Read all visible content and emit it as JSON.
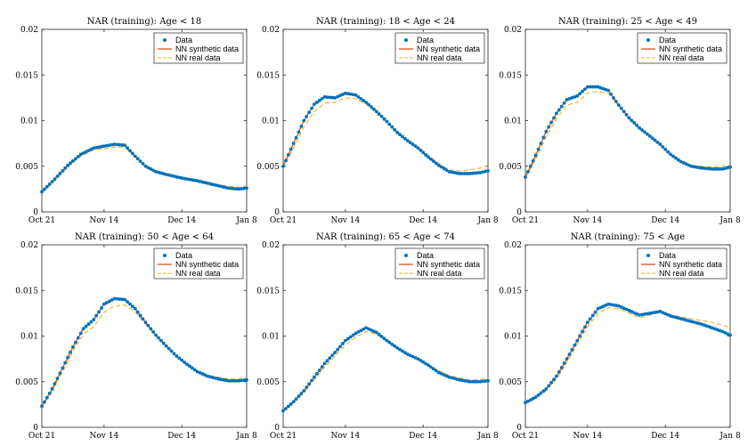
{
  "colors": {
    "data": "#0072BD",
    "synthetic": "#D95319",
    "real": "#EDB120"
  },
  "chart_data": [
    {
      "type": "line",
      "title": "NAR (training): Age < 18",
      "x_ticks": [
        "Oct 21",
        "Nov 14",
        "Dec 14",
        "Jan 8"
      ],
      "x_tick_days": [
        0,
        24,
        54,
        79
      ],
      "ylim": [
        0,
        0.02
      ],
      "y_ticks": [
        "0",
        "0.005",
        "0.01",
        "0.015",
        "0.02"
      ],
      "legend": [
        "Data",
        "NN synthetic data",
        "NN real data"
      ],
      "series": [
        {
          "name": "Data",
          "x": [
            0,
            5,
            10,
            15,
            20,
            24,
            28,
            32,
            36,
            40,
            44,
            48,
            54,
            60,
            66,
            72,
            76,
            79
          ],
          "values": [
            0.0022,
            0.0036,
            0.0051,
            0.0063,
            0.007,
            0.0072,
            0.0074,
            0.0073,
            0.0061,
            0.005,
            0.0044,
            0.0041,
            0.0037,
            0.0034,
            0.003,
            0.0026,
            0.0025,
            0.0026
          ]
        },
        {
          "name": "NN synthetic data",
          "x": [
            0,
            5,
            10,
            15,
            20,
            24,
            28,
            32,
            36,
            40,
            44,
            48,
            54,
            60,
            66,
            72,
            76,
            79
          ],
          "values": [
            0.0022,
            0.0036,
            0.0051,
            0.0063,
            0.007,
            0.0072,
            0.0074,
            0.0073,
            0.0061,
            0.005,
            0.0044,
            0.0041,
            0.0037,
            0.0034,
            0.003,
            0.0026,
            0.0025,
            0.0026
          ]
        },
        {
          "name": "NN real data",
          "x": [
            0,
            5,
            10,
            15,
            20,
            24,
            28,
            32,
            36,
            40,
            44,
            48,
            54,
            60,
            66,
            72,
            76,
            79
          ],
          "values": [
            0.0021,
            0.0034,
            0.0049,
            0.0061,
            0.0068,
            0.0069,
            0.0071,
            0.0071,
            0.006,
            0.005,
            0.0044,
            0.0042,
            0.0038,
            0.0035,
            0.0031,
            0.0028,
            0.0027,
            0.0028
          ]
        }
      ]
    },
    {
      "type": "line",
      "title": "NAR (training): 18 < Age < 24",
      "x_ticks": [
        "Oct 21",
        "Nov 14",
        "Dec 14",
        "Jan 8"
      ],
      "x_tick_days": [
        0,
        24,
        54,
        79
      ],
      "ylim": [
        0,
        0.02
      ],
      "y_ticks": [
        "0",
        "0.005",
        "0.01",
        "0.015",
        "0.02"
      ],
      "legend": [
        "Data",
        "NN synthetic data",
        "NN real data"
      ],
      "series": [
        {
          "name": "Data",
          "x": [
            0,
            4,
            8,
            12,
            16,
            20,
            24,
            28,
            32,
            36,
            40,
            44,
            48,
            52,
            56,
            60,
            64,
            68,
            72,
            76,
            79
          ],
          "values": [
            0.005,
            0.0075,
            0.01,
            0.0118,
            0.0126,
            0.0125,
            0.013,
            0.0128,
            0.012,
            0.011,
            0.0099,
            0.0087,
            0.0078,
            0.007,
            0.006,
            0.0051,
            0.0044,
            0.0042,
            0.0042,
            0.0043,
            0.0045
          ]
        },
        {
          "name": "NN synthetic data",
          "x": [
            0,
            4,
            8,
            12,
            16,
            20,
            24,
            28,
            32,
            36,
            40,
            44,
            48,
            52,
            56,
            60,
            64,
            68,
            72,
            76,
            79
          ],
          "values": [
            0.005,
            0.0075,
            0.01,
            0.0118,
            0.0126,
            0.0125,
            0.013,
            0.0128,
            0.012,
            0.011,
            0.0099,
            0.0087,
            0.0078,
            0.007,
            0.006,
            0.0051,
            0.0044,
            0.0042,
            0.0042,
            0.0043,
            0.0045
          ]
        },
        {
          "name": "NN real data",
          "x": [
            0,
            4,
            8,
            12,
            16,
            20,
            24,
            28,
            32,
            36,
            40,
            44,
            48,
            52,
            56,
            60,
            64,
            68,
            72,
            76,
            79
          ],
          "values": [
            0.0048,
            0.007,
            0.0093,
            0.011,
            0.0119,
            0.012,
            0.0125,
            0.0124,
            0.0118,
            0.0109,
            0.0099,
            0.0088,
            0.0079,
            0.0071,
            0.0062,
            0.0053,
            0.0046,
            0.0045,
            0.0046,
            0.0048,
            0.0051
          ]
        }
      ]
    },
    {
      "type": "line",
      "title": "NAR (training): 25 < Age < 49",
      "x_ticks": [
        "Oct 21",
        "Nov 14",
        "Dec 14",
        "Jan 8"
      ],
      "x_tick_days": [
        0,
        24,
        54,
        79
      ],
      "ylim": [
        0,
        0.02
      ],
      "y_ticks": [
        "0",
        "0.005",
        "0.01",
        "0.015",
        "0.02"
      ],
      "legend": [
        "Data",
        "NN synthetic data",
        "NN real data"
      ],
      "series": [
        {
          "name": "Data",
          "x": [
            0,
            4,
            8,
            12,
            16,
            20,
            24,
            28,
            32,
            36,
            40,
            44,
            48,
            52,
            56,
            60,
            64,
            68,
            72,
            76,
            79
          ],
          "values": [
            0.0038,
            0.0062,
            0.0088,
            0.0108,
            0.0123,
            0.0127,
            0.0137,
            0.0137,
            0.0133,
            0.0117,
            0.0103,
            0.0092,
            0.0083,
            0.0074,
            0.0063,
            0.0055,
            0.005,
            0.0048,
            0.0047,
            0.0047,
            0.0049
          ]
        },
        {
          "name": "NN synthetic data",
          "x": [
            0,
            4,
            8,
            12,
            16,
            20,
            24,
            28,
            32,
            36,
            40,
            44,
            48,
            52,
            56,
            60,
            64,
            68,
            72,
            76,
            79
          ],
          "values": [
            0.0038,
            0.0062,
            0.0088,
            0.0108,
            0.0123,
            0.0127,
            0.0137,
            0.0137,
            0.0133,
            0.0117,
            0.0103,
            0.0092,
            0.0083,
            0.0074,
            0.0063,
            0.0055,
            0.005,
            0.0048,
            0.0047,
            0.0047,
            0.0049
          ]
        },
        {
          "name": "NN real data",
          "x": [
            0,
            4,
            8,
            12,
            16,
            20,
            24,
            28,
            32,
            36,
            40,
            44,
            48,
            52,
            56,
            60,
            64,
            68,
            72,
            76,
            79
          ],
          "values": [
            0.0037,
            0.0058,
            0.0082,
            0.0102,
            0.0117,
            0.012,
            0.013,
            0.0132,
            0.013,
            0.0116,
            0.0102,
            0.0091,
            0.0082,
            0.0073,
            0.0064,
            0.0056,
            0.0051,
            0.005,
            0.0049,
            0.005,
            0.0052
          ]
        }
      ]
    },
    {
      "type": "line",
      "title": "NAR (training): 50 < Age < 64",
      "x_ticks": [
        "Oct 21",
        "Nov 14",
        "Dec 14",
        "Jan 8"
      ],
      "x_tick_days": [
        0,
        24,
        54,
        79
      ],
      "ylim": [
        0,
        0.02
      ],
      "y_ticks": [
        "0",
        "0.005",
        "0.01",
        "0.015",
        "0.02"
      ],
      "legend": [
        "Data",
        "NN synthetic data",
        "NN real data"
      ],
      "series": [
        {
          "name": "Data",
          "x": [
            0,
            4,
            8,
            12,
            16,
            20,
            24,
            28,
            32,
            36,
            40,
            44,
            48,
            52,
            56,
            60,
            64,
            68,
            72,
            76,
            79
          ],
          "values": [
            0.0023,
            0.0042,
            0.0065,
            0.0088,
            0.0108,
            0.0118,
            0.0135,
            0.0141,
            0.014,
            0.013,
            0.0115,
            0.0101,
            0.0089,
            0.0078,
            0.0069,
            0.0061,
            0.0056,
            0.0053,
            0.0051,
            0.0051,
            0.0052
          ]
        },
        {
          "name": "NN synthetic data",
          "x": [
            0,
            4,
            8,
            12,
            16,
            20,
            24,
            28,
            32,
            36,
            40,
            44,
            48,
            52,
            56,
            60,
            64,
            68,
            72,
            76,
            79
          ],
          "values": [
            0.0023,
            0.0042,
            0.0065,
            0.0088,
            0.0108,
            0.0118,
            0.0135,
            0.0141,
            0.014,
            0.013,
            0.0115,
            0.0101,
            0.0089,
            0.0078,
            0.0069,
            0.0061,
            0.0056,
            0.0053,
            0.0051,
            0.0051,
            0.0052
          ]
        },
        {
          "name": "NN real data",
          "x": [
            0,
            4,
            8,
            12,
            16,
            20,
            24,
            28,
            32,
            36,
            40,
            44,
            48,
            52,
            56,
            60,
            64,
            68,
            72,
            76,
            79
          ],
          "values": [
            0.0022,
            0.004,
            0.0061,
            0.0083,
            0.0102,
            0.011,
            0.0126,
            0.0133,
            0.0134,
            0.0127,
            0.0113,
            0.01,
            0.0088,
            0.0077,
            0.0068,
            0.0061,
            0.0057,
            0.0055,
            0.0053,
            0.0053,
            0.0055
          ]
        }
      ]
    },
    {
      "type": "line",
      "title": "NAR (training): 65 < Age < 74",
      "x_ticks": [
        "Oct 21",
        "Nov 14",
        "Dec 14",
        "Jan 8"
      ],
      "x_tick_days": [
        0,
        24,
        54,
        79
      ],
      "ylim": [
        0,
        0.02
      ],
      "y_ticks": [
        "0",
        "0.005",
        "0.01",
        "0.015",
        "0.02"
      ],
      "legend": [
        "Data",
        "NN synthetic data",
        "NN real data"
      ],
      "series": [
        {
          "name": "Data",
          "x": [
            0,
            4,
            8,
            12,
            16,
            20,
            24,
            28,
            32,
            36,
            40,
            44,
            48,
            52,
            56,
            60,
            64,
            68,
            72,
            76,
            79
          ],
          "values": [
            0.0018,
            0.0028,
            0.004,
            0.0055,
            0.007,
            0.0082,
            0.0095,
            0.0103,
            0.0109,
            0.0104,
            0.0095,
            0.0087,
            0.008,
            0.0075,
            0.0068,
            0.006,
            0.0055,
            0.0052,
            0.005,
            0.005,
            0.0051
          ]
        },
        {
          "name": "NN synthetic data",
          "x": [
            0,
            4,
            8,
            12,
            16,
            20,
            24,
            28,
            32,
            36,
            40,
            44,
            48,
            52,
            56,
            60,
            64,
            68,
            72,
            76,
            79
          ],
          "values": [
            0.0018,
            0.0028,
            0.004,
            0.0055,
            0.007,
            0.0082,
            0.0095,
            0.0103,
            0.0109,
            0.0104,
            0.0095,
            0.0087,
            0.008,
            0.0075,
            0.0068,
            0.006,
            0.0055,
            0.0052,
            0.005,
            0.005,
            0.0051
          ]
        },
        {
          "name": "NN real data",
          "x": [
            0,
            4,
            8,
            12,
            16,
            20,
            24,
            28,
            32,
            36,
            40,
            44,
            48,
            52,
            56,
            60,
            64,
            68,
            72,
            76,
            79
          ],
          "values": [
            0.0017,
            0.0027,
            0.0038,
            0.0052,
            0.0066,
            0.0078,
            0.009,
            0.0099,
            0.0105,
            0.0102,
            0.0094,
            0.0087,
            0.008,
            0.0075,
            0.0069,
            0.0062,
            0.0057,
            0.0054,
            0.0052,
            0.0052,
            0.0055
          ]
        }
      ]
    },
    {
      "type": "line",
      "title": "NAR (training): 75 < Age",
      "x_ticks": [
        "Oct 21",
        "Nov 14",
        "Dec 14",
        "Jan 8"
      ],
      "x_tick_days": [
        0,
        24,
        54,
        79
      ],
      "ylim": [
        0,
        0.02
      ],
      "y_ticks": [
        "0",
        "0.005",
        "0.01",
        "0.015",
        "0.02"
      ],
      "legend": [
        "Data",
        "NN synthetic data",
        "NN real data"
      ],
      "series": [
        {
          "name": "Data",
          "x": [
            0,
            4,
            8,
            12,
            16,
            20,
            24,
            28,
            32,
            36,
            40,
            44,
            48,
            52,
            56,
            60,
            64,
            68,
            72,
            76,
            79
          ],
          "values": [
            0.0027,
            0.0033,
            0.0042,
            0.0056,
            0.0075,
            0.0095,
            0.0115,
            0.013,
            0.0135,
            0.0133,
            0.0128,
            0.0123,
            0.0125,
            0.0127,
            0.0122,
            0.0119,
            0.0116,
            0.0113,
            0.0109,
            0.0105,
            0.0101
          ]
        },
        {
          "name": "NN synthetic data",
          "x": [
            0,
            4,
            8,
            12,
            16,
            20,
            24,
            28,
            32,
            36,
            40,
            44,
            48,
            52,
            56,
            60,
            64,
            68,
            72,
            76,
            79
          ],
          "values": [
            0.0027,
            0.0033,
            0.0042,
            0.0056,
            0.0075,
            0.0095,
            0.0115,
            0.013,
            0.0135,
            0.0133,
            0.0128,
            0.0123,
            0.0125,
            0.0127,
            0.0122,
            0.0119,
            0.0116,
            0.0113,
            0.0109,
            0.0105,
            0.0101
          ]
        },
        {
          "name": "NN real data",
          "x": [
            0,
            4,
            8,
            12,
            16,
            20,
            24,
            28,
            32,
            36,
            40,
            44,
            48,
            52,
            56,
            60,
            64,
            68,
            72,
            76,
            79
          ],
          "values": [
            0.0026,
            0.0032,
            0.004,
            0.0053,
            0.0071,
            0.0091,
            0.011,
            0.0125,
            0.0131,
            0.013,
            0.0125,
            0.012,
            0.0123,
            0.0126,
            0.0123,
            0.0121,
            0.0119,
            0.0117,
            0.0115,
            0.0112,
            0.0109
          ]
        }
      ]
    }
  ]
}
